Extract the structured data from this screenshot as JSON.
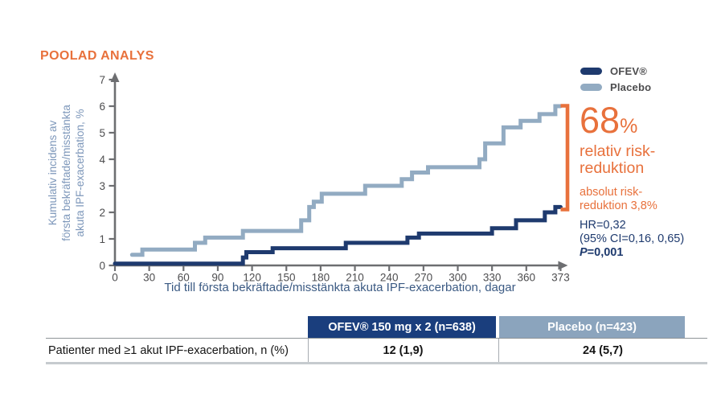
{
  "colors": {
    "accent_orange": "#E8713C",
    "ofev_navy": "#1E3A6E",
    "placebo_blue": "#92ABC2",
    "axis_gray": "#6D6E71",
    "tick_text": "#4D4D4F",
    "table_header_navy": "#1A3E7D",
    "table_header_blue": "#8BA4BD"
  },
  "chart_data": {
    "type": "line",
    "subtype": "step",
    "title": "POOLAD ANALYS",
    "xlabel": "Tid till första bekräftade/misstänkta akuta IPF-exacerbation, dagar",
    "ylabel": "Kumulativ incidens av första bekräftade/misstänkta akuta IPF-exacerbation, %",
    "ylabel_lines": [
      "Kumulativ incidens av",
      "första bekräftade/misstänkta",
      "akuta IPF-exacerbation, %"
    ],
    "xlim": [
      0,
      373
    ],
    "ylim": [
      0,
      7
    ],
    "grid": false,
    "legend_position": "top-right",
    "xticks": [
      0,
      30,
      60,
      90,
      120,
      150,
      180,
      210,
      240,
      270,
      300,
      330,
      360,
      373
    ],
    "yticks": [
      0,
      1,
      2,
      3,
      4,
      5,
      6,
      7
    ],
    "series": [
      {
        "name": "OFEV®",
        "color": "#1E3A6E",
        "points": [
          [
            0,
            0.07
          ],
          [
            112,
            0.3
          ],
          [
            115,
            0.5
          ],
          [
            138,
            0.65
          ],
          [
            202,
            0.85
          ],
          [
            256,
            1.05
          ],
          [
            266,
            1.2
          ],
          [
            330,
            1.4
          ],
          [
            351,
            1.7
          ],
          [
            367,
            2.0
          ],
          [
            371,
            2.2
          ],
          [
            373,
            2.2
          ]
        ]
      },
      {
        "name": "Placebo",
        "color": "#92ABC2",
        "points": [
          [
            15,
            0.4
          ],
          [
            24,
            0.6
          ],
          [
            70,
            0.85
          ],
          [
            79,
            1.05
          ],
          [
            112,
            1.3
          ],
          [
            163,
            1.7
          ],
          [
            170,
            2.2
          ],
          [
            174,
            2.4
          ],
          [
            181,
            2.7
          ],
          [
            219,
            3.0
          ],
          [
            251,
            3.25
          ],
          [
            260,
            3.5
          ],
          [
            274,
            3.7
          ],
          [
            319,
            4.0
          ],
          [
            324,
            4.6
          ],
          [
            340,
            5.2
          ],
          [
            355,
            5.45
          ],
          [
            365,
            5.7
          ],
          [
            371,
            6.0
          ],
          [
            373,
            6.0
          ]
        ]
      }
    ]
  },
  "annotation": {
    "bracket": {
      "from_value": 2.2,
      "to_value": 6.0,
      "color": "#E8713C"
    },
    "big_value": "68",
    "big_unit": "%",
    "rel_line1": "relativ risk-",
    "rel_line2": "reduktion",
    "abs_line1": "absolut risk-",
    "abs_line2": "reduktion 3,8%",
    "hr": "HR=0,32",
    "ci": "(95% CI=0,16, 0,65)",
    "p_label": "P",
    "p_value": "=0,001"
  },
  "table": {
    "row_label": "Patienter med ≥1 akut IPF-exacerbation, n (%)",
    "columns": [
      {
        "header": "OFEV® 150 mg x 2 (n=638)",
        "value": "12 (1,9)"
      },
      {
        "header": "Placebo (n=423)",
        "value": "24 (5,7)"
      }
    ]
  }
}
